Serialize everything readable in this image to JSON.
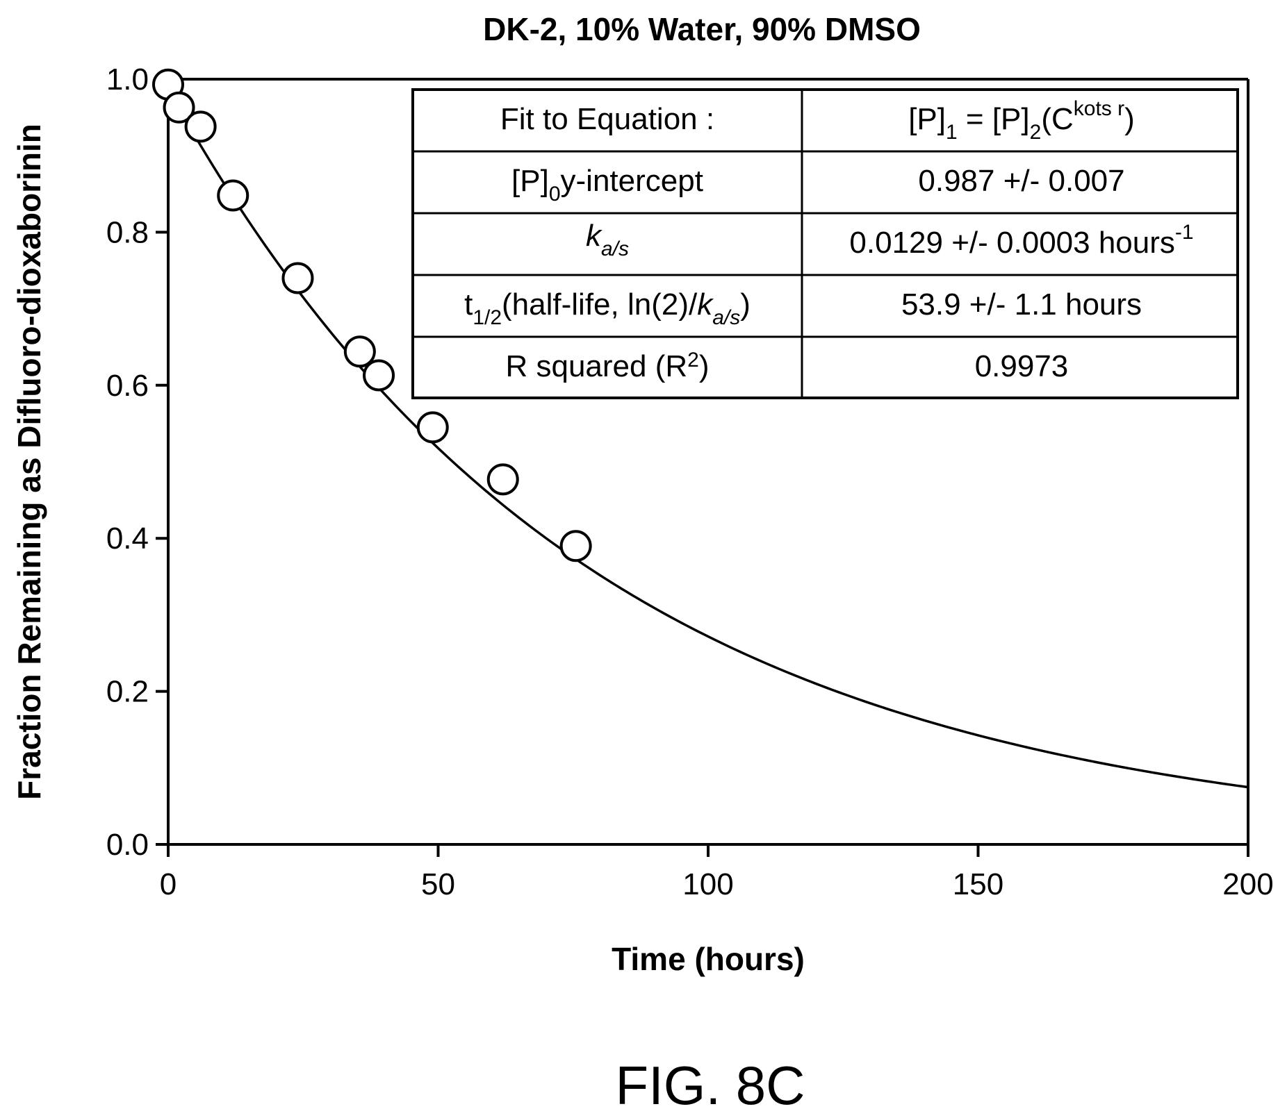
{
  "chart_data": {
    "type": "scatter",
    "title": "DK-2, 10% Water, 90% DMSO",
    "xlabel": "Time (hours)",
    "ylabel": "Fraction Remaining as Difluoro-dioxaborinin",
    "xlim": [
      0,
      200
    ],
    "ylim": [
      0.0,
      1.0
    ],
    "x_ticks": [
      "0",
      "50",
      "100",
      "150",
      "200"
    ],
    "y_ticks": [
      "0.0",
      "0.2",
      "0.4",
      "0.6",
      "0.8",
      "1.0"
    ],
    "grid": false,
    "series": [
      {
        "marker": "open-circle",
        "x": [
          0,
          2,
          6,
          12,
          24,
          35.5,
          39,
          49,
          62,
          75.5
        ],
        "y": [
          0.993,
          0.963,
          0.938,
          0.848,
          0.74,
          0.644,
          0.613,
          0.545,
          0.477,
          0.39
        ]
      }
    ],
    "fit_curve": {
      "model": "exponential decay",
      "y0": 0.987,
      "k": 0.0129
    },
    "fit_table": [
      {
        "label": "Fit to Equation :",
        "value": "[P]1 = [P]2(Ckots r)"
      },
      {
        "label": "[P]0y-intercept",
        "value": "0.987 +/- 0.007"
      },
      {
        "label": "ka/s",
        "value": "0.0129 +/- 0.0003 hours-1"
      },
      {
        "label": "t1/2(half-life, ln(2)/ka/s)",
        "value": "53.9 +/- 1.1 hours"
      },
      {
        "label": "R squared (R2)",
        "value": "0.9973"
      }
    ]
  },
  "figure_label": "FIG. 8C"
}
